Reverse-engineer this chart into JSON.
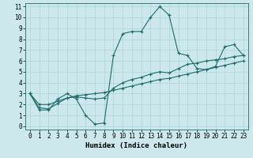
{
  "xlabel": "Humidex (Indice chaleur)",
  "bg_color": "#cce8ec",
  "grid_color": "#aad4d8",
  "line_color": "#1e6b6b",
  "spine_color": "#1e6b6b",
  "xlim": [
    -0.5,
    23.5
  ],
  "ylim": [
    -0.3,
    11.3
  ],
  "xticks": [
    0,
    1,
    2,
    3,
    4,
    5,
    6,
    7,
    8,
    9,
    10,
    11,
    12,
    13,
    14,
    15,
    16,
    17,
    18,
    19,
    20,
    21,
    22,
    23
  ],
  "yticks": [
    0,
    1,
    2,
    3,
    4,
    5,
    6,
    7,
    8,
    9,
    10,
    11
  ],
  "line1_y": [
    3.0,
    1.5,
    1.5,
    2.5,
    3.0,
    2.5,
    1.0,
    0.2,
    0.3,
    6.5,
    8.5,
    8.7,
    8.7,
    10.0,
    11.0,
    10.2,
    6.7,
    6.5,
    5.3,
    5.2,
    5.5,
    7.3,
    7.5,
    6.5
  ],
  "line2_y": [
    3.0,
    1.7,
    1.6,
    2.1,
    2.6,
    2.7,
    2.6,
    2.5,
    2.6,
    3.5,
    4.0,
    4.3,
    4.5,
    4.8,
    5.0,
    4.9,
    5.3,
    5.7,
    5.8,
    6.0,
    6.1,
    6.2,
    6.4,
    6.5
  ],
  "line3_y": [
    3.0,
    2.0,
    2.0,
    2.3,
    2.6,
    2.8,
    2.9,
    3.0,
    3.1,
    3.3,
    3.5,
    3.7,
    3.9,
    4.1,
    4.3,
    4.4,
    4.6,
    4.8,
    5.0,
    5.2,
    5.4,
    5.6,
    5.8,
    6.0
  ],
  "tick_fontsize": 5.5,
  "xlabel_fontsize": 6.5,
  "linewidth": 0.8,
  "markersize": 3.0
}
